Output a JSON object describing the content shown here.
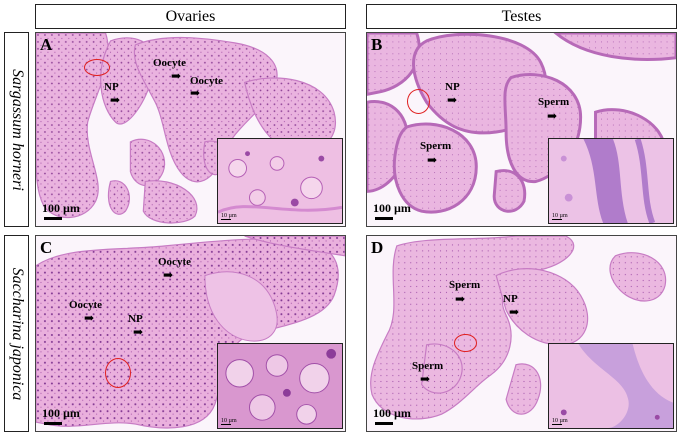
{
  "columns": {
    "ovaries": "Ovaries",
    "testes": "Testes"
  },
  "rows": {
    "sargassum": "Sargassum horneri",
    "saccharina": "Saccharina japonica"
  },
  "panels": {
    "A": {
      "label": "A",
      "annotations": [
        "Oocyte",
        "Oocyte",
        "NP"
      ],
      "scale": "100 µm",
      "inset_scale": "10 µm"
    },
    "B": {
      "label": "B",
      "annotations": [
        "NP",
        "Sperm",
        "Sperm"
      ],
      "scale": "100 µm",
      "inset_scale": "10 µm"
    },
    "C": {
      "label": "C",
      "annotations": [
        "Oocyte",
        "Oocyte",
        "NP"
      ],
      "scale": "100 µm",
      "inset_scale": "10 µm"
    },
    "D": {
      "label": "D",
      "annotations": [
        "Sperm",
        "NP",
        "Sperm"
      ],
      "scale": "100 µm",
      "inset_scale": "10 µm"
    }
  },
  "colors": {
    "tissue": "#e8a9dc",
    "tissue_dark": "#c77cc4",
    "background": "#fbf5fb",
    "circle": "#e02020"
  }
}
